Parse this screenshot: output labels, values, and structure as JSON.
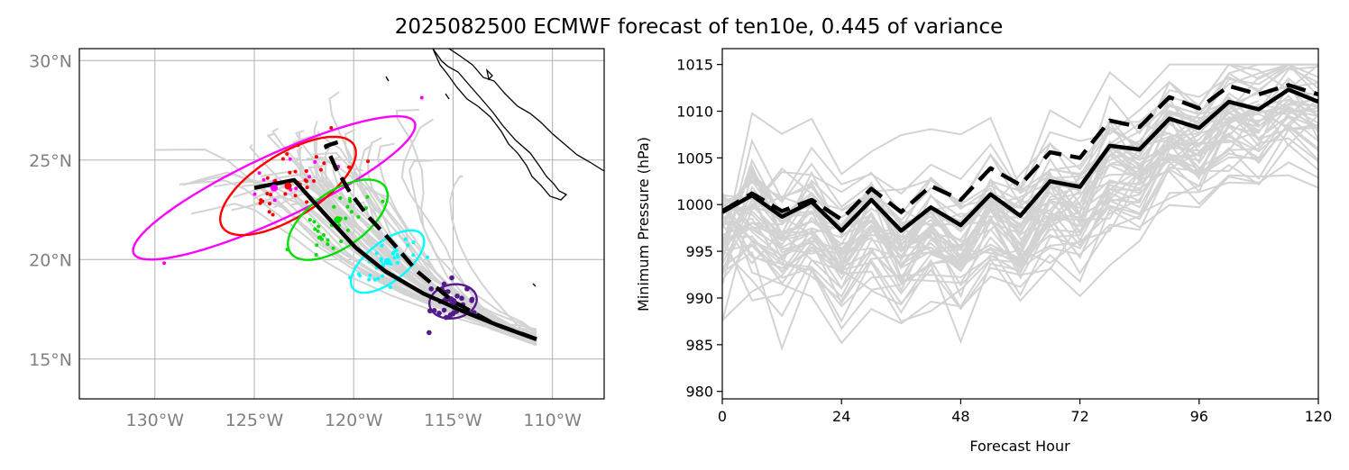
{
  "title": "2025082500 ECMWF forecast of ten10e, 0.445 of variance",
  "colors": {
    "ensemble": "#d3d3d3",
    "mean": "#000000",
    "clusters": [
      "#ff00ff",
      "#ff0000",
      "#00e000",
      "#00ffff",
      "#551a8b"
    ],
    "geo_tick": "#808080"
  },
  "chart_data": [
    {
      "type": "scatter",
      "panel": "map",
      "xlim": [
        -133.8,
        -107.4
      ],
      "ylim": [
        13,
        30.6
      ],
      "xticks": [
        -130,
        -125,
        -120,
        -115,
        -110
      ],
      "yticks": [
        15,
        20,
        25,
        30
      ],
      "xtick_labels": [
        "130°W",
        "125°W",
        "120°W",
        "115°W",
        "110°W"
      ],
      "ytick_labels": [
        "15°N",
        "20°N",
        "25°N",
        "30°N"
      ],
      "grid": true,
      "mean_track": [
        [
          -110.8,
          16.0
        ],
        [
          -112.5,
          16.6
        ],
        [
          -114.5,
          17.4
        ],
        [
          -116.5,
          18.3
        ],
        [
          -118.4,
          19.4
        ],
        [
          -119.9,
          20.6
        ],
        [
          -121.1,
          21.9
        ],
        [
          -122.1,
          23.0
        ],
        [
          -123.0,
          24.0
        ],
        [
          -124.0,
          23.8
        ],
        [
          -125.0,
          23.6
        ]
      ],
      "second_track": [
        [
          -110.8,
          16.0
        ],
        [
          -113.0,
          16.8
        ],
        [
          -115.0,
          17.9
        ],
        [
          -116.8,
          19.4
        ],
        [
          -118.0,
          20.8
        ],
        [
          -119.3,
          22.2
        ],
        [
          -120.2,
          23.4
        ],
        [
          -120.9,
          24.6
        ],
        [
          -121.4,
          25.7
        ],
        [
          -120.8,
          25.9
        ]
      ],
      "ellipses": [
        {
          "color": "#ff00ff",
          "center": [
            -124.0,
            23.6
          ],
          "rx_deg": 7.8,
          "ry_deg": 1.6,
          "angle_deg": 25
        },
        {
          "color": "#ff0000",
          "center": [
            -123.3,
            23.7
          ],
          "rx_deg": 3.9,
          "ry_deg": 1.6,
          "angle_deg": 32
        },
        {
          "color": "#00e000",
          "center": [
            -120.8,
            22.0
          ],
          "rx_deg": 2.9,
          "ry_deg": 1.4,
          "angle_deg": 35
        },
        {
          "color": "#00ffff",
          "center": [
            -118.3,
            19.9
          ],
          "rx_deg": 2.2,
          "ry_deg": 1.0,
          "angle_deg": 38
        },
        {
          "color": "#551a8b",
          "center": [
            -115.0,
            17.9
          ],
          "rx_deg": 1.2,
          "ry_deg": 0.85,
          "angle_deg": 10
        }
      ]
    },
    {
      "type": "line",
      "panel": "pressure",
      "xlabel": "Forecast Hour",
      "ylabel": "Minimum Pressure (hPa)",
      "xlim": [
        0,
        120
      ],
      "ylim": [
        979.2,
        1016.7
      ],
      "xticks": [
        0,
        24,
        48,
        72,
        96,
        120
      ],
      "yticks": [
        980,
        985,
        990,
        995,
        1000,
        1005,
        1010,
        1015
      ],
      "x": [
        0,
        6,
        12,
        18,
        24,
        30,
        36,
        42,
        48,
        54,
        60,
        66,
        72,
        78,
        84,
        90,
        96,
        102,
        108,
        114,
        120
      ],
      "series": [
        {
          "style": "solid",
          "values": [
            999.2,
            1001.0,
            998.7,
            1000.3,
            997.2,
            1000.5,
            997.2,
            999.7,
            997.8,
            1001.1,
            998.8,
            1002.5,
            1001.9,
            1006.3,
            1005.9,
            1009.2,
            1008.2,
            1011.0,
            1010.2,
            1012.3,
            1011.0
          ]
        },
        {
          "style": "dashed",
          "values": [
            999.3,
            1001.2,
            999.3,
            1000.5,
            998.4,
            1001.7,
            999.2,
            1002.0,
            1000.5,
            1003.9,
            1002.1,
            1005.6,
            1005.0,
            1009.0,
            1008.3,
            1011.5,
            1010.3,
            1012.7,
            1011.8,
            1012.8,
            1011.8
          ]
        }
      ]
    }
  ]
}
